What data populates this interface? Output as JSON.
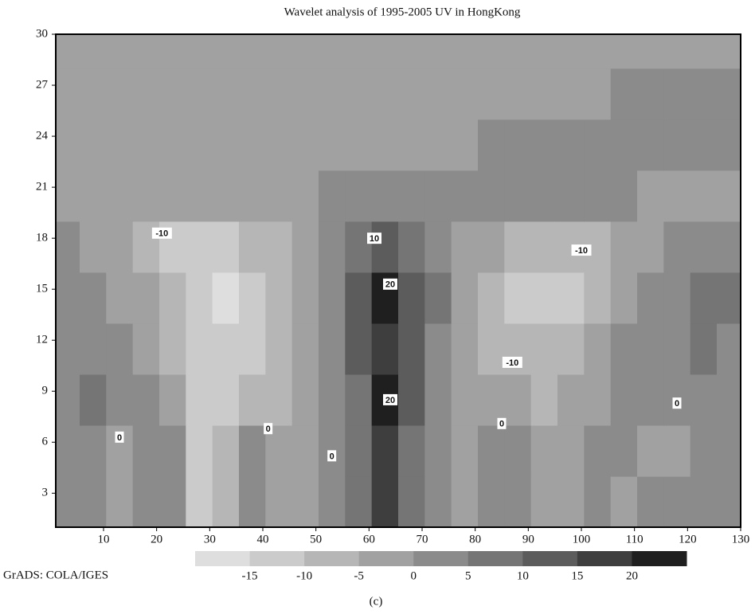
{
  "chart_data": {
    "type": "contour",
    "title": "Wavelet analysis of 1995-2005 UV in HongKong",
    "credit": "GrADS: COLA/IGES",
    "caption": "(c)",
    "xlim": [
      1,
      130
    ],
    "ylim": [
      1,
      30
    ],
    "xticks": [
      10,
      20,
      30,
      40,
      50,
      60,
      70,
      80,
      90,
      100,
      110,
      120,
      130
    ],
    "yticks": [
      3,
      6,
      9,
      12,
      15,
      18,
      21,
      24,
      27,
      30
    ],
    "levels": [
      -15,
      -10,
      -5,
      0,
      5,
      10,
      15,
      20
    ],
    "colors": [
      "#dedede",
      "#cbcbcb",
      "#b6b6b6",
      "#a1a1a1",
      "#8b8b8b",
      "#757575",
      "#5c5c5c",
      "#3e3e3e",
      "#1f1f1f"
    ],
    "x": [
      3,
      8,
      13,
      18,
      23,
      28,
      33,
      38,
      43,
      48,
      53,
      58,
      63,
      68,
      73,
      78,
      83,
      88,
      93,
      98,
      103,
      108,
      113,
      118,
      123,
      128
    ],
    "y": [
      2.5,
      5.5,
      8.5,
      11.5,
      14.5,
      17.5,
      20.5,
      23.5,
      26.5,
      29.5
    ],
    "z": [
      [
        2,
        4,
        -2,
        1,
        2,
        -12,
        -9,
        3,
        -4,
        -3,
        2,
        5,
        15,
        8,
        1,
        -3,
        3,
        2,
        -3,
        -2,
        2,
        -1,
        2,
        1,
        4,
        3
      ],
      [
        2,
        4,
        -1,
        2,
        3,
        -11,
        -10,
        3,
        -4,
        -3,
        2,
        6,
        17,
        9,
        1,
        -3,
        2,
        1,
        -4,
        -3,
        1,
        2,
        -2,
        -1,
        3,
        2
      ],
      [
        1,
        5,
        2,
        1,
        -2,
        -11,
        -12,
        -8,
        -6,
        -4,
        0,
        8,
        21,
        12,
        2,
        -4,
        -5,
        -4,
        -6,
        -4,
        -2,
        1,
        1,
        1,
        3,
        2
      ],
      [
        3,
        4,
        1,
        -2,
        -6,
        -12,
        -15,
        -13,
        -8,
        -4,
        2,
        10,
        18,
        13,
        4,
        -3,
        -7,
        -10,
        -8,
        -6,
        -3,
        0,
        2,
        3,
        5,
        4
      ],
      [
        4,
        2,
        -1,
        -4,
        -9,
        -13,
        -16,
        -14,
        -9,
        -4,
        3,
        12,
        22,
        14,
        5,
        -2,
        -6,
        -11,
        -14,
        -12,
        -8,
        -3,
        1,
        3,
        7,
        6
      ],
      [
        1,
        -3,
        -5,
        -7,
        -11,
        -12,
        -11,
        -9,
        -6,
        -3,
        3,
        7,
        11,
        8,
        4,
        -2,
        -5,
        -7,
        -9,
        -9,
        -7,
        -5,
        -2,
        0,
        2,
        3
      ],
      [
        -5,
        -5,
        -5,
        -5,
        -5,
        -5,
        -5,
        -5,
        -5,
        -3,
        2,
        2,
        2,
        2,
        2,
        2,
        2,
        2,
        2,
        2,
        2,
        2,
        -2,
        -2,
        -2,
        -2
      ],
      [
        -3,
        -3,
        -3,
        -3,
        -3,
        -3,
        -3,
        -3,
        -3,
        -3,
        -3,
        -3,
        -3,
        -3,
        -3,
        -3,
        1,
        1,
        1,
        1,
        1,
        1,
        1,
        1,
        1,
        1
      ],
      [
        -3,
        -3,
        -3,
        -3,
        -3,
        -3,
        -3,
        -3,
        -3,
        -3,
        -3,
        -3,
        -3,
        -3,
        -3,
        -3,
        -3,
        -3,
        -3,
        -3,
        -3,
        1,
        1,
        1,
        1,
        1
      ],
      [
        -3,
        -3,
        -3,
        -3,
        -3,
        -3,
        -3,
        -3,
        -3,
        -3,
        -3,
        -3,
        -3,
        -3,
        -3,
        -3,
        -3,
        -3,
        -3,
        -3,
        -3,
        -3,
        -3,
        -3,
        -3,
        -3
      ]
    ],
    "contour_labels": [
      {
        "text": "-10",
        "x": 21,
        "y": 18.3
      },
      {
        "text": "10",
        "x": 61,
        "y": 18
      },
      {
        "text": "20",
        "x": 64,
        "y": 15.3
      },
      {
        "text": "20",
        "x": 64,
        "y": 8.5
      },
      {
        "text": "-10",
        "x": 100,
        "y": 17.3
      },
      {
        "text": "-10",
        "x": 87,
        "y": 10.7
      },
      {
        "text": "0",
        "x": 13,
        "y": 6.3
      },
      {
        "text": "0",
        "x": 41,
        "y": 6.8
      },
      {
        "text": "0",
        "x": 53,
        "y": 5.2
      },
      {
        "text": "0",
        "x": 85,
        "y": 7.1
      },
      {
        "text": "0",
        "x": 118,
        "y": 8.3
      }
    ]
  }
}
